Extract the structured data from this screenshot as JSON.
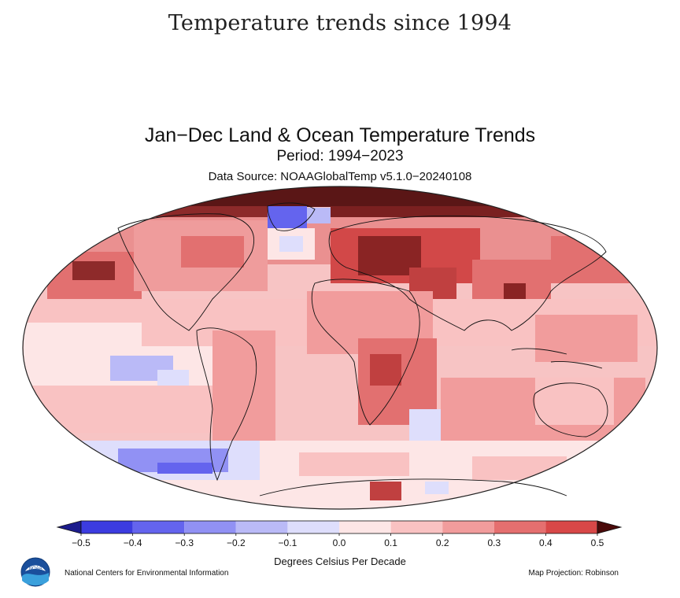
{
  "page": {
    "heading": "Temperature trends since 1994"
  },
  "map": {
    "title": "Jan−Dec Land & Ocean Temperature Trends",
    "period": "Period: 1994−2023",
    "source": "Data Source: NOAAGlobalTemp v5.1.0−20240108",
    "projection_label": "Map Projection: Robinson",
    "organization": "National Centers for Environmental Information",
    "logo_icon": "noaa-logo-icon",
    "land_color": "#ffffff",
    "missing_color": "#ffffff"
  },
  "legend": {
    "title": "Degrees Celsius Per Decade",
    "ticks": [
      "−0.5",
      "−0.4",
      "−0.3",
      "−0.2",
      "−0.1",
      "0.0",
      "0.1",
      "0.2",
      "0.3",
      "0.4",
      "0.5"
    ],
    "colors": [
      "#3c3ce0",
      "#6464ee",
      "#9191f4",
      "#babaf7",
      "#dedefc",
      "#fde6e6",
      "#f9c2c2",
      "#f19c9c",
      "#e56f6f",
      "#d84848"
    ],
    "under_color": "#1c1c8c",
    "over_color": "#4a0a0a"
  }
}
